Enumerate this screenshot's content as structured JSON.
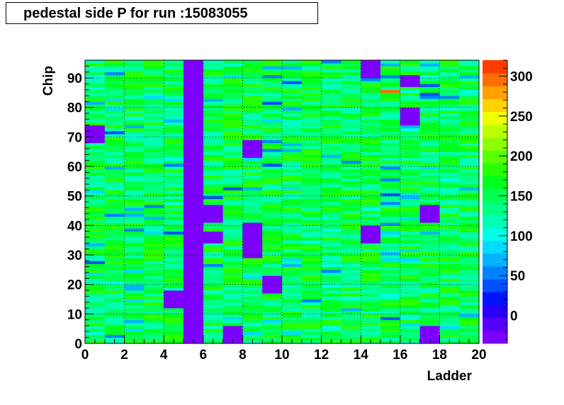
{
  "title": "pedestal side P for run :15083055",
  "chart_data": {
    "type": "heatmap",
    "title": "pedestal side P for run :15083055",
    "xlabel": "Ladder",
    "ylabel": "Chip",
    "xlim": [
      0,
      20
    ],
    "ylim": [
      0,
      96
    ],
    "zlim": [
      -35,
      320
    ],
    "x_ticks": [
      0,
      2,
      4,
      6,
      8,
      10,
      12,
      14,
      16,
      18,
      20
    ],
    "y_ticks": [
      0,
      10,
      20,
      30,
      40,
      50,
      60,
      70,
      80,
      90
    ],
    "z_ticks": [
      0,
      50,
      100,
      150,
      200,
      250,
      300
    ],
    "palette": [
      "#7c00ff",
      "#5500ff",
      "#2b00ff",
      "#0014ff",
      "#0050ff",
      "#0082ff",
      "#00b4ff",
      "#00dcff",
      "#00ffe6",
      "#00ffb4",
      "#00ff82",
      "#00ff50",
      "#00ff1e",
      "#28ff00",
      "#5aff00",
      "#8cff00",
      "#beff00",
      "#f0ff00",
      "#ffd200",
      "#ffa000",
      "#ff6e00",
      "#ff3c00"
    ],
    "grid": true,
    "bins_x": 20,
    "bins_y": 96,
    "baseline_value": 150,
    "baseline_variation": 40,
    "special_regions": [
      {
        "ladders": [
          5
        ],
        "chips": [
          0,
          96
        ],
        "value": -20
      },
      {
        "ladders": [
          4
        ],
        "chips": [
          12,
          18
        ],
        "value": -20
      },
      {
        "ladders": [
          6
        ],
        "chips": [
          34,
          38
        ],
        "value": -20
      },
      {
        "ladders": [
          6
        ],
        "chips": [
          41,
          47
        ],
        "value": -20
      },
      {
        "ladders": [
          8
        ],
        "chips": [
          29,
          41
        ],
        "value": -20
      },
      {
        "ladders": [
          8
        ],
        "chips": [
          63,
          69
        ],
        "value": -20
      },
      {
        "ladders": [
          9
        ],
        "chips": [
          17,
          23
        ],
        "value": -20
      },
      {
        "ladders": [
          14
        ],
        "chips": [
          34,
          40
        ],
        "value": -20
      },
      {
        "ladders": [
          14
        ],
        "chips": [
          90,
          96
        ],
        "value": -20
      },
      {
        "ladders": [
          17
        ],
        "chips": [
          0,
          6
        ],
        "value": -20
      },
      {
        "ladders": [
          17
        ],
        "chips": [
          41,
          47
        ],
        "value": -20
      },
      {
        "ladders": [
          16
        ],
        "chips": [
          74,
          80
        ],
        "value": -20
      },
      {
        "ladders": [
          16
        ],
        "chips": [
          87,
          91
        ],
        "value": -20
      },
      {
        "ladders": [
          0
        ],
        "chips": [
          68,
          74
        ],
        "value": -20
      },
      {
        "ladders": [
          7
        ],
        "chips": [
          0,
          6
        ],
        "value": -20
      },
      {
        "ladders": [
          15
        ],
        "chips": [
          85,
          86
        ],
        "value": 300
      }
    ]
  }
}
